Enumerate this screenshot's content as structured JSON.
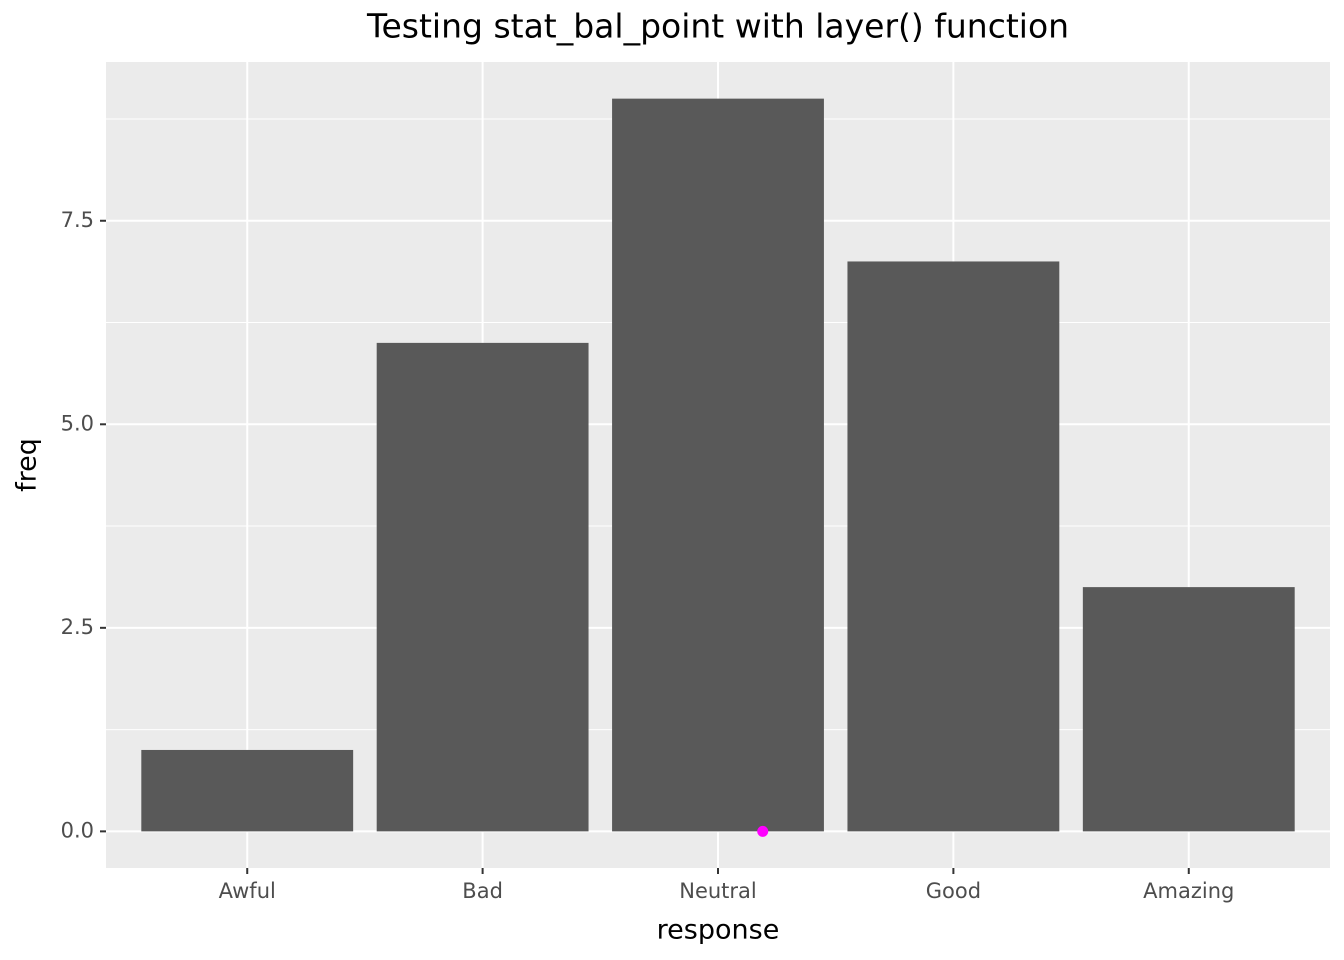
{
  "chart_data": {
    "type": "bar",
    "title": "Testing stat_bal_point with layer() function",
    "x_label": "response",
    "y_label": "freq",
    "categories": [
      "Awful",
      "Bad",
      "Neutral",
      "Good",
      "Amazing"
    ],
    "values": [
      1,
      6,
      9,
      7,
      3
    ],
    "color": "#595959",
    "balance_point": {
      "x": 3.19,
      "y": 0,
      "color": "#ff00ff"
    },
    "ylim": [
      -0.45,
      9.45
    ],
    "yticks": [
      {
        "value": 0,
        "label": "0.0"
      },
      2.5,
      {
        "value": 5,
        "label": "5.0"
      },
      7.5
    ],
    "grid": true
  }
}
